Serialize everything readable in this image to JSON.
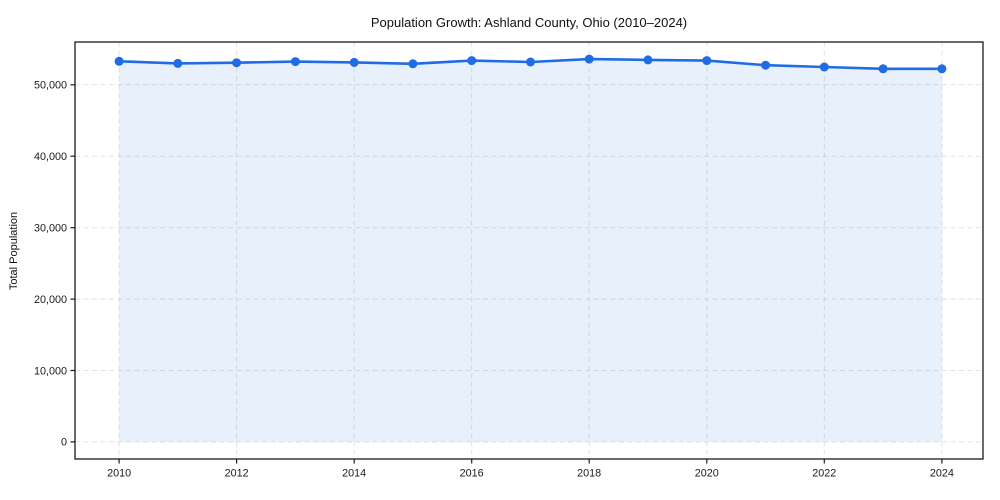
{
  "chart_data": {
    "type": "line",
    "title": "Population Growth: Ashland County, Ohio (2010–2024)",
    "xlabel": "",
    "ylabel": "Total Population",
    "series_name": "Total Population",
    "x": [
      2010,
      2011,
      2012,
      2013,
      2014,
      2015,
      2016,
      2017,
      2018,
      2019,
      2020,
      2021,
      2022,
      2023,
      2024
    ],
    "values": [
      53300,
      53000,
      53100,
      53250,
      53150,
      52950,
      53400,
      53200,
      53600,
      53500,
      53400,
      52750,
      52500,
      52250,
      52250
    ],
    "xlim": [
      2009.25,
      2024.7
    ],
    "ylim": [
      -2400,
      56000
    ],
    "xticks": {
      "values": [
        2010,
        2012,
        2014,
        2016,
        2018,
        2020,
        2022,
        2024
      ],
      "labels": [
        "2010",
        "2012",
        "2014",
        "2016",
        "2018",
        "2020",
        "2022",
        "2024"
      ]
    },
    "yticks": {
      "values": [
        0,
        10000,
        20000,
        30000,
        40000,
        50000
      ],
      "labels": [
        "0",
        "10,000",
        "20,000",
        "30,000",
        "40,000",
        "50,000"
      ]
    },
    "grid": true,
    "grid_style": "dashed",
    "legend": false,
    "line_color": "#1f6ce4",
    "marker": "circle",
    "area_fill_color": "#1f6ce4",
    "area_fill_opacity": 0.1,
    "grid_color": "#d9d9d9",
    "background_color": "#ffffff"
  }
}
